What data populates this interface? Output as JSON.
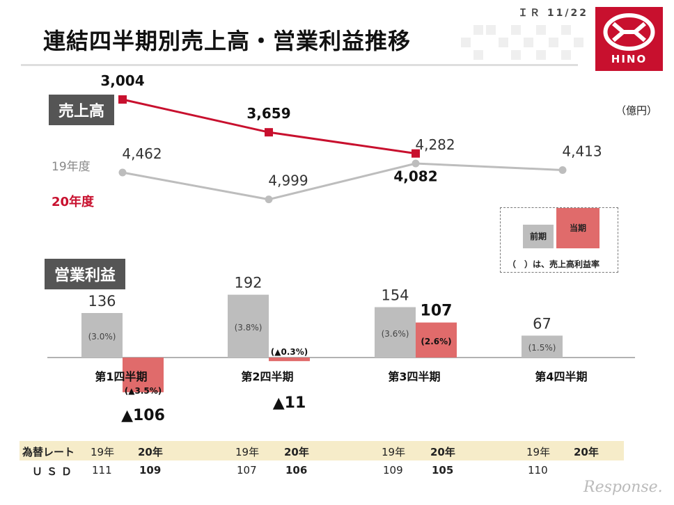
{
  "header": {
    "title": "連結四半期別売上高・営業利益推移",
    "page": "ＩＲ 11/22"
  },
  "logo": {
    "text": "HINO",
    "color": "#c8102e"
  },
  "sections": {
    "sales": "売上高",
    "op_profit": "営業利益"
  },
  "unit": "（億円）",
  "legend": {
    "prev": "前期",
    "curr": "当期",
    "note": "（　）は、売上高利益率"
  },
  "chart_data": [
    {
      "type": "line",
      "categories": [
        "第1四半期",
        "第2四半期",
        "第3四半期",
        "第4四半期"
      ],
      "series": [
        {
          "name": "19年度",
          "values": [
            4462,
            4999,
            4282,
            4413
          ],
          "labels": [
            "4,462",
            "4,999",
            "4,282",
            "4,413"
          ],
          "color": "#bdbdbd"
        },
        {
          "name": "20年度",
          "values": [
            3004,
            3659,
            4082,
            null
          ],
          "labels": [
            "3,004",
            "3,659",
            "4,082",
            ""
          ],
          "color": "#c8102e"
        }
      ]
    },
    {
      "type": "bar",
      "categories": [
        "第1四半期",
        "第2四半期",
        "第3四半期",
        "第4四半期"
      ],
      "series": [
        {
          "name": "前期",
          "values": [
            136,
            192,
            154,
            67
          ],
          "labels": [
            "136",
            "192",
            "154",
            "67"
          ],
          "rates": [
            "(3.0%)",
            "(3.8%)",
            "(3.6%)",
            "(1.5%)"
          ],
          "color": "#bdbdbd"
        },
        {
          "name": "当期",
          "values": [
            -106,
            -11,
            107,
            null
          ],
          "labels": [
            "▲106",
            "▲11",
            "107",
            ""
          ],
          "rates": [
            "(▲3.5%)",
            "(▲0.3%)",
            "(2.6%)",
            ""
          ],
          "color": "#e06b6b"
        }
      ]
    }
  ],
  "fx": {
    "label": "為替レート",
    "currency": "ＵＳＤ",
    "quarters": [
      {
        "y19": "19年",
        "y20": "20年",
        "v19": "111",
        "v20": "109"
      },
      {
        "y19": "19年",
        "y20": "20年",
        "v19": "107",
        "v20": "106"
      },
      {
        "y19": "19年",
        "y20": "20年",
        "v19": "109",
        "v20": "105"
      },
      {
        "y19": "19年",
        "y20": "20年",
        "v19": "110",
        "v20": ""
      }
    ]
  },
  "watermark": "Response."
}
